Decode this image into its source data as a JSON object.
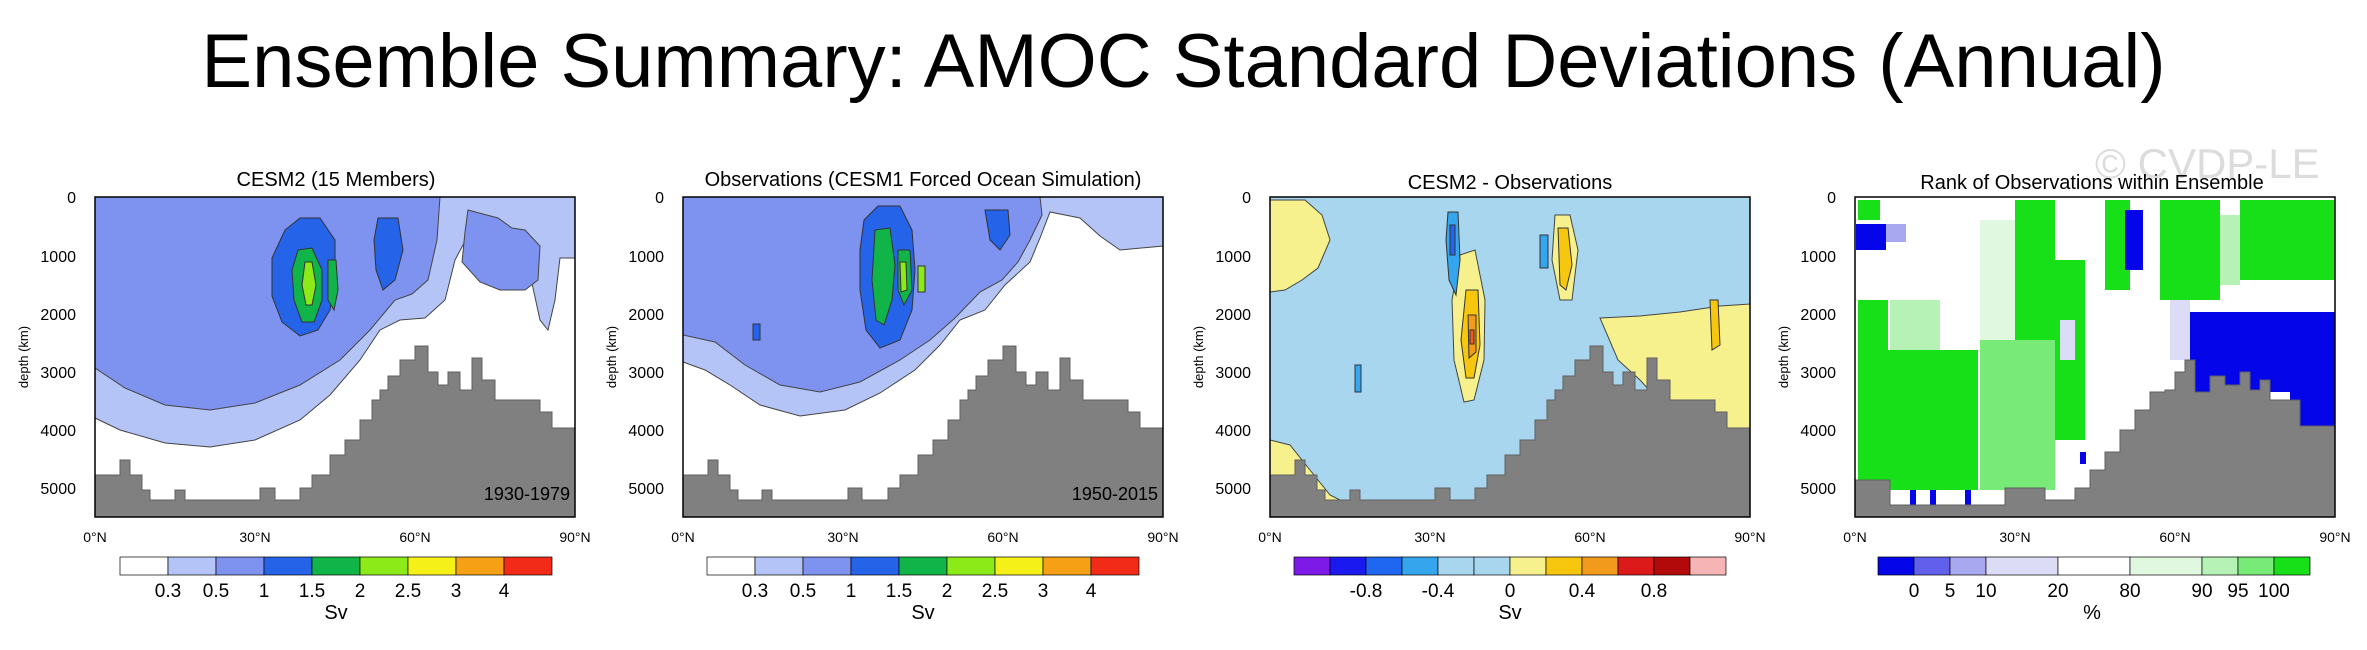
{
  "figure": {
    "title": "Ensemble Summary: AMOC Standard Deviations (Annual)",
    "watermark": "© CVDP-LE"
  },
  "colors": {
    "land": "#808080",
    "sv_levels": [
      "#ffffff",
      "#b4c4f7",
      "#7e92f0",
      "#2563e8",
      "#10b448",
      "#8cea18",
      "#f4f018",
      "#f5a015",
      "#f22a18"
    ],
    "diff_levels": [
      "#7d1ae8",
      "#1a1af0",
      "#1f66f0",
      "#35a6ee",
      "#a8d6ee",
      "#f6f18c",
      "#f6c70e",
      "#f29a1c",
      "#ef5c1e",
      "#dd1a1a",
      "#b20a0a",
      "#f7b4b4"
    ],
    "rank_levels": [
      "#0505ea",
      "#6060ec",
      "#a8a8f0",
      "#dcdcf6",
      "#ffffff",
      "#e0f8e0",
      "#b6f2b6",
      "#78ea78",
      "#18e018"
    ]
  },
  "chart_data": [
    {
      "type": "contour",
      "title": "CESM2 (15 Members)",
      "period": "1930-1979",
      "ylabel": "depth (km)",
      "xlim": [
        0,
        90
      ],
      "ylim": [
        5500,
        0
      ],
      "xticks": [
        "0°N",
        "30°N",
        "60°N",
        "90°N"
      ],
      "yticks": [
        "0",
        "1000",
        "2000",
        "3000",
        "4000",
        "5000"
      ],
      "colorbar": {
        "labels": [
          "0.3",
          "0.5",
          "1",
          "1.5",
          "2",
          "2.5",
          "3",
          "4"
        ],
        "unit": "Sv"
      },
      "contour_levels": [
        0.3,
        0.5,
        1,
        1.5,
        2,
        2.5,
        3,
        4
      ]
    },
    {
      "type": "contour",
      "title": "Observations (CESM1 Forced Ocean Simulation)",
      "period": "1950-2015",
      "ylabel": "depth (km)",
      "xlim": [
        0,
        90
      ],
      "ylim": [
        5500,
        0
      ],
      "xticks": [
        "0°N",
        "30°N",
        "60°N",
        "90°N"
      ],
      "yticks": [
        "0",
        "1000",
        "2000",
        "3000",
        "4000",
        "5000"
      ],
      "colorbar": {
        "labels": [
          "0.3",
          "0.5",
          "1",
          "1.5",
          "2",
          "2.5",
          "3",
          "4"
        ],
        "unit": "Sv"
      },
      "contour_levels": [
        0.3,
        0.5,
        1,
        1.5,
        2,
        2.5,
        3,
        4
      ]
    },
    {
      "type": "contour",
      "title": "CESM2 - Observations",
      "ylabel": "depth (km)",
      "xlim": [
        0,
        90
      ],
      "ylim": [
        5500,
        0
      ],
      "xticks": [
        "0°N",
        "30°N",
        "60°N",
        "90°N"
      ],
      "yticks": [
        "0",
        "1000",
        "2000",
        "3000",
        "4000",
        "5000"
      ],
      "colorbar": {
        "labels": [
          "-0.8",
          "-0.4",
          "0",
          "0.4",
          "0.8"
        ],
        "unit": "Sv"
      },
      "contour_levels": [
        -1.0,
        -0.8,
        -0.6,
        -0.4,
        -0.2,
        0,
        0.2,
        0.4,
        0.6,
        0.8,
        1.0
      ]
    },
    {
      "type": "heatmap",
      "title": "Rank of Observations within Ensemble",
      "ylabel": "depth (km)",
      "xlim": [
        0,
        90
      ],
      "ylim": [
        5500,
        0
      ],
      "xticks": [
        "0°N",
        "30°N",
        "60°N",
        "90°N"
      ],
      "yticks": [
        "0",
        "1000",
        "2000",
        "3000",
        "4000",
        "5000"
      ],
      "colorbar": {
        "labels": [
          "0",
          "5",
          "10",
          "20",
          "80",
          "90",
          "95",
          "100"
        ],
        "unit": "%"
      },
      "rank_levels": [
        0,
        5,
        10,
        20,
        80,
        90,
        95,
        100
      ]
    }
  ]
}
